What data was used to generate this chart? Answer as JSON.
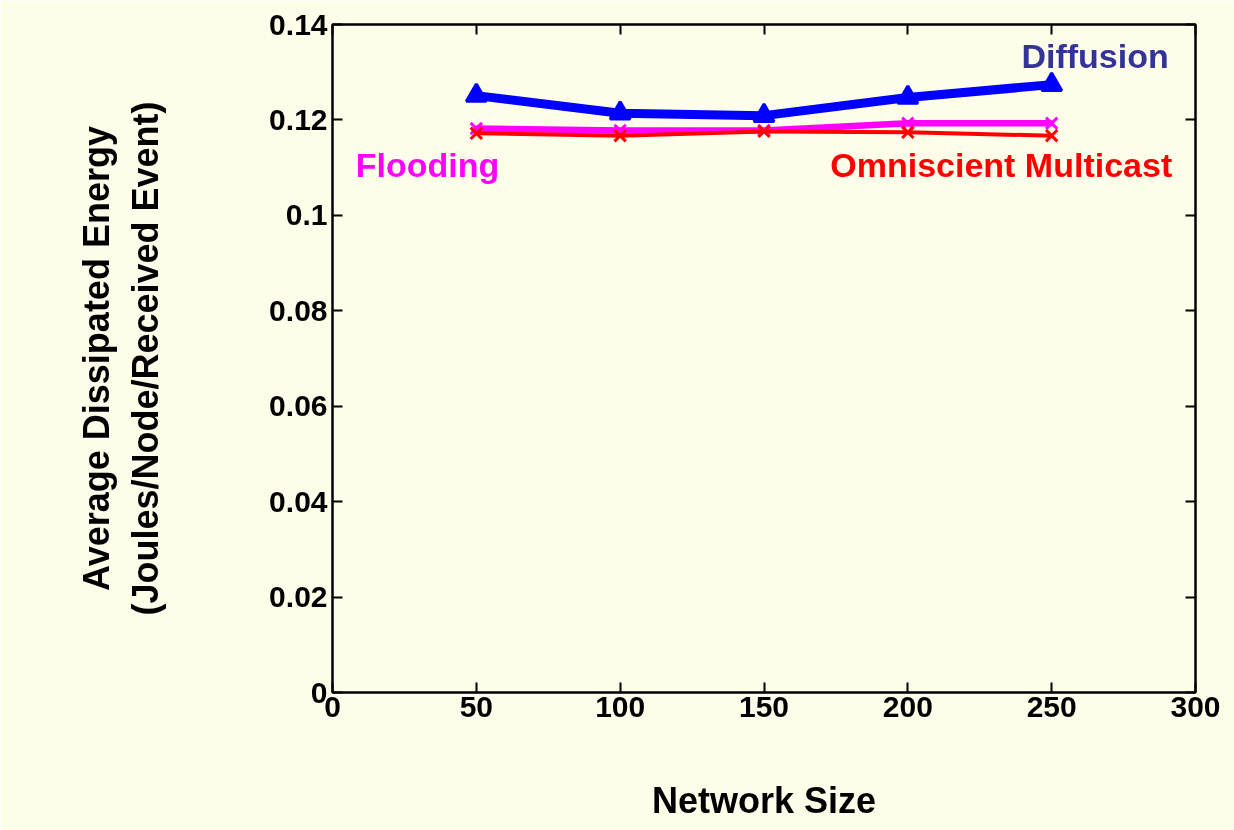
{
  "chart_data": {
    "type": "line",
    "xlabel": "Network Size",
    "ylabel": "Average Dissipated Energy\n(Joules/Node/Received Event)",
    "x": [
      50,
      100,
      150,
      200,
      250
    ],
    "series": [
      {
        "name": "Diffusion",
        "color": "#0000ff",
        "marker": "triangle",
        "values": [
          0.1251,
          0.1214,
          0.1209,
          0.1247,
          0.1274
        ]
      },
      {
        "name": "Flooding",
        "color": "#ff00ff",
        "marker": "cross",
        "values": [
          0.1182,
          0.1178,
          0.1178,
          0.1193,
          0.1193
        ]
      },
      {
        "name": "Omniscient Multicast",
        "color": "#ff0000",
        "marker": "cross",
        "values": [
          0.1172,
          0.1167,
          0.1176,
          0.1174,
          0.1167
        ]
      }
    ],
    "xlim": [
      0,
      300
    ],
    "xticks": [
      0,
      50,
      100,
      150,
      200,
      250,
      300
    ],
    "ylim": [
      0,
      0.14
    ],
    "yticks": [
      0,
      0.02,
      0.04,
      0.06,
      0.08,
      0.1,
      0.12,
      0.14
    ],
    "grid": false,
    "legend": "top",
    "line_style": "solid"
  }
}
